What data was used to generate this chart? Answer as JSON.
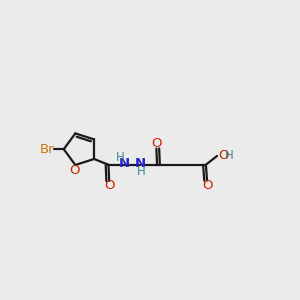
{
  "background_color": "#EBEBEB",
  "line_color": "#1A1A1A",
  "bond_lw": 1.6,
  "figsize": [
    3.0,
    3.0
  ],
  "dpi": 100,
  "colors": {
    "C": "#1A1A1A",
    "O": "#CC2200",
    "N": "#2222CC",
    "Br": "#CC7700",
    "H": "#3A8A8A"
  }
}
